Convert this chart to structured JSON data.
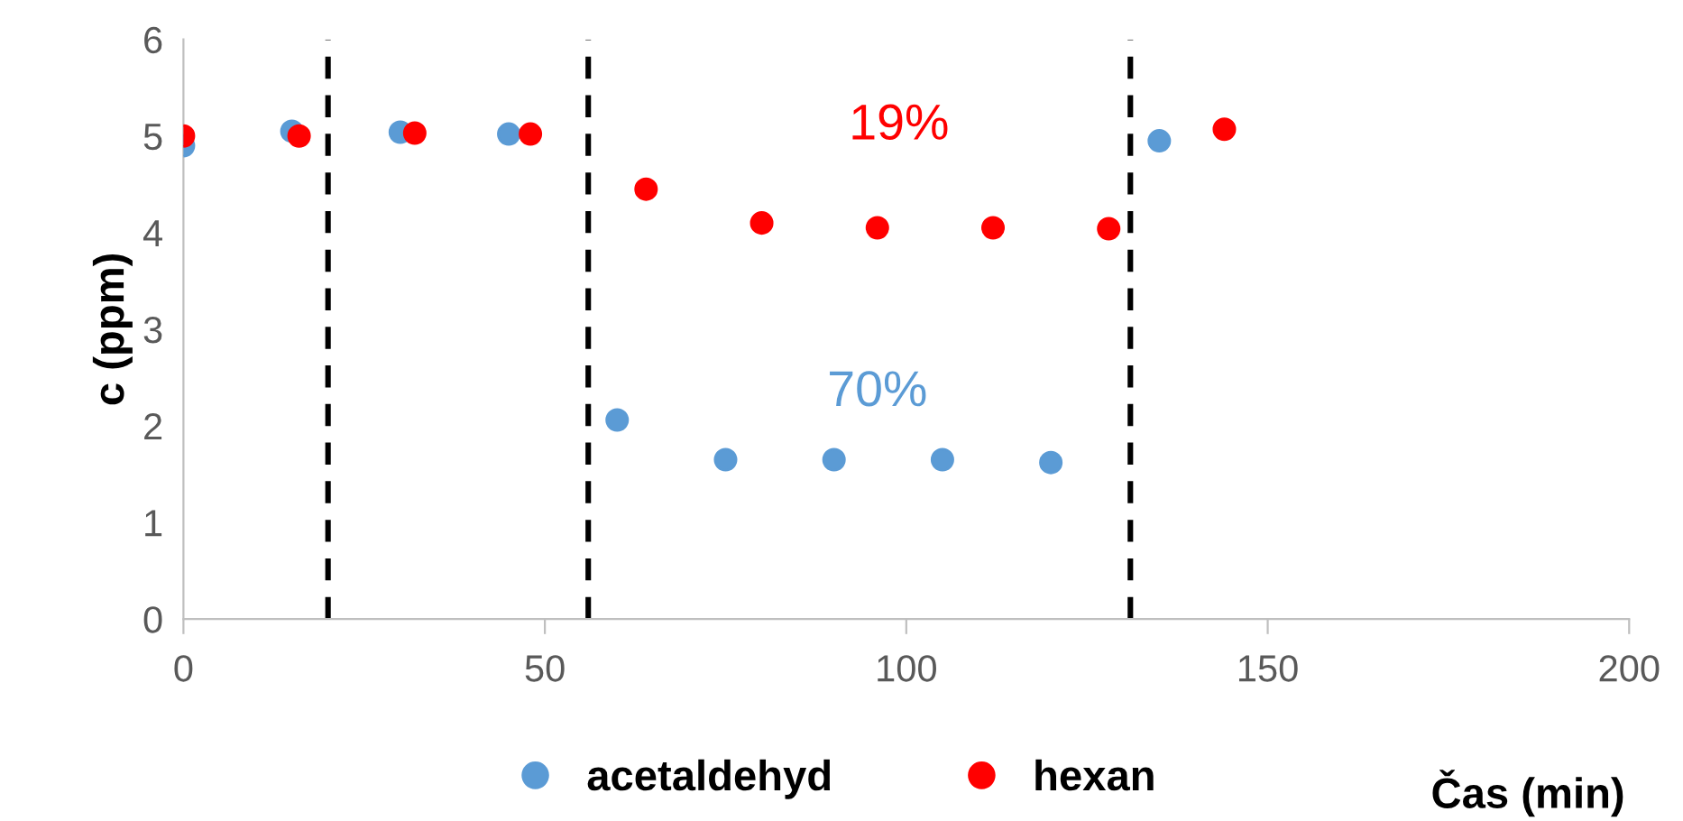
{
  "chart_data": {
    "type": "scatter",
    "xlabel": "Čas (min)",
    "ylabel": "c (ppm)",
    "xlim": [
      0,
      200
    ],
    "xticks": [
      0,
      50,
      100,
      150,
      200
    ],
    "ylim": [
      0,
      6
    ],
    "yticks": [
      0,
      1,
      2,
      3,
      4,
      5,
      6
    ],
    "grid": false,
    "legend": "bottom",
    "marker": "circle",
    "series": [
      {
        "name": "acetaldehyd",
        "color": "#5b9bd5",
        "x": [
          0,
          15,
          30,
          45,
          60,
          75,
          90,
          105,
          120,
          135
        ],
        "values": [
          4.9,
          5.05,
          5.04,
          5.02,
          2.06,
          1.65,
          1.65,
          1.65,
          1.62,
          4.95
        ]
      },
      {
        "name": "hexan",
        "color": "#ff0000",
        "x": [
          0,
          16,
          32,
          48,
          64,
          80,
          96,
          112,
          128,
          144
        ],
        "values": [
          5.0,
          5.0,
          5.03,
          5.02,
          4.45,
          4.1,
          4.05,
          4.05,
          4.04,
          5.07
        ]
      }
    ],
    "ref_lines": [
      {
        "axis": "x",
        "value": 20,
        "color": "#000000",
        "line_style": "dashed"
      },
      {
        "axis": "x",
        "value": 56,
        "color": "#000000",
        "line_style": "dashed"
      },
      {
        "axis": "x",
        "value": 131,
        "color": "#000000",
        "line_style": "dashed"
      }
    ],
    "annotations": [
      "70%",
      "19%"
    ]
  }
}
